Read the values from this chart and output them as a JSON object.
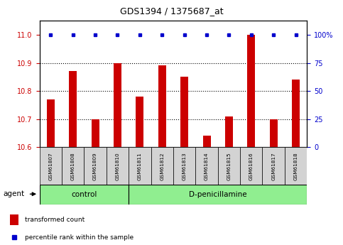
{
  "title": "GDS1394 / 1375687_at",
  "samples": [
    "GSM61807",
    "GSM61808",
    "GSM61809",
    "GSM61810",
    "GSM61811",
    "GSM61812",
    "GSM61813",
    "GSM61814",
    "GSM61815",
    "GSM61816",
    "GSM61817",
    "GSM61818"
  ],
  "transformed_counts": [
    10.77,
    10.87,
    10.7,
    10.9,
    10.78,
    10.89,
    10.85,
    10.64,
    10.71,
    11.0,
    10.7,
    10.84
  ],
  "percentile_ranks": [
    100,
    100,
    100,
    100,
    100,
    100,
    100,
    100,
    100,
    100,
    100,
    100
  ],
  "ymin": 10.6,
  "ymax": 11.0,
  "yticks": [
    10.6,
    10.7,
    10.8,
    10.9,
    11.0
  ],
  "y2ticks": [
    0,
    25,
    50,
    75,
    100
  ],
  "y2ticklabels": [
    "0",
    "25",
    "50",
    "75",
    "100%"
  ],
  "bar_color": "#cc0000",
  "dot_color": "#0000cc",
  "bar_width": 0.35,
  "n_control": 4,
  "n_treatment": 8,
  "control_label": "control",
  "treatment_label": "D-penicillamine",
  "agent_label": "agent",
  "group_color": "#90EE90",
  "sample_box_color": "#d3d3d3",
  "legend_items": [
    {
      "label": "transformed count",
      "color": "#cc0000"
    },
    {
      "label": "percentile rank within the sample",
      "color": "#0000cc"
    }
  ],
  "background_color": "#ffffff",
  "tick_color_left": "#cc0000",
  "tick_color_right": "#0000cc",
  "grid_color": "#000000",
  "grid_yticks": [
    10.7,
    10.8,
    10.9
  ]
}
